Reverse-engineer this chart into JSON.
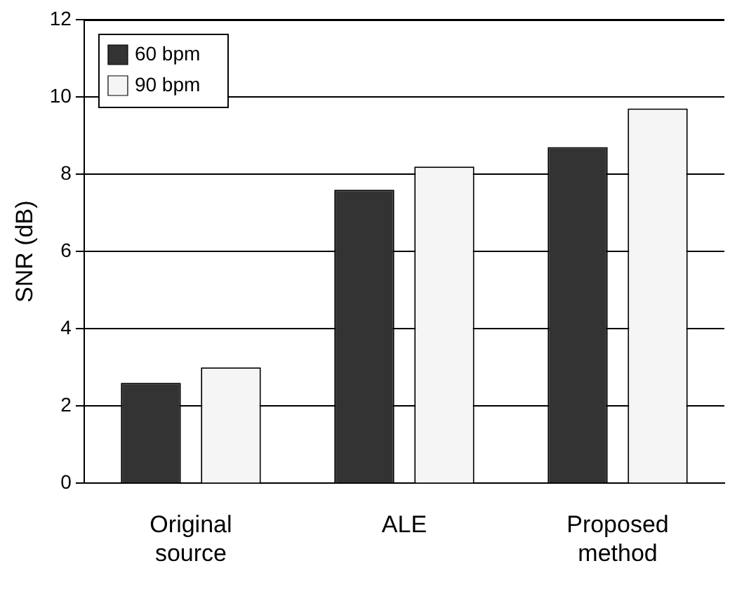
{
  "chart_data": {
    "type": "bar",
    "ylabel": "SNR (dB)",
    "categories": [
      "Original source",
      "ALE",
      "Proposed method"
    ],
    "series": [
      {
        "name": "60 bpm",
        "color": "#333333",
        "values": [
          2.6,
          7.6,
          8.7
        ]
      },
      {
        "name": "90 bpm",
        "color": "#f5f5f5",
        "values": [
          3.0,
          8.2,
          9.7
        ]
      }
    ],
    "ylim": [
      0,
      12
    ],
    "yticks": [
      0,
      2,
      4,
      6,
      8,
      10,
      12
    ],
    "grid": "y",
    "legend": "top left"
  }
}
